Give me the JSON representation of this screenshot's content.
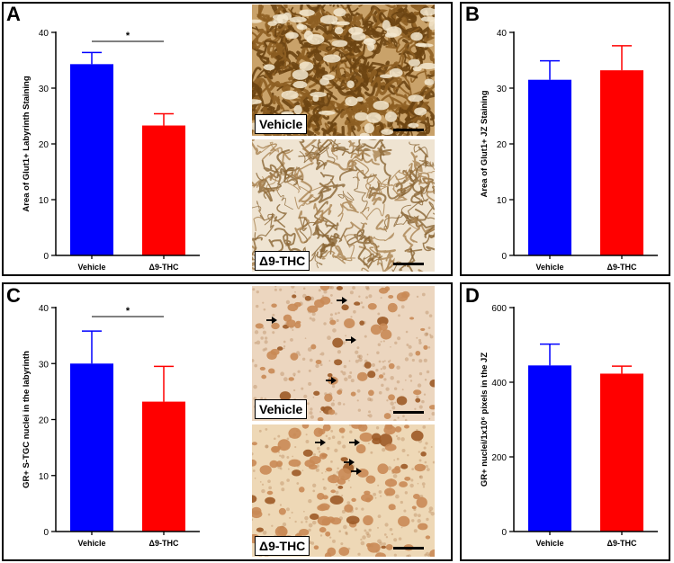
{
  "panels": {
    "A": {
      "letter": "A"
    },
    "B": {
      "letter": "B"
    },
    "C": {
      "letter": "C"
    },
    "D": {
      "letter": "D"
    }
  },
  "micrographs": {
    "A_vehicle": {
      "label": "Vehicle",
      "color": "#a9773a"
    },
    "A_thc": {
      "label": "Δ9-THC",
      "color": "#b48a55"
    },
    "C_vehicle": {
      "label": "Vehicle",
      "color": "#c98e5e"
    },
    "C_thc": {
      "label": "Δ9-THC",
      "color": "#c8894f"
    }
  },
  "chart_data": [
    {
      "id": "A",
      "type": "bar",
      "categories": [
        "Vehicle",
        "Δ9-THC"
      ],
      "values": [
        34.3,
        23.3
      ],
      "errors": [
        2.1,
        2.1
      ],
      "colors": [
        "#0000ff",
        "#ff0000"
      ],
      "ylabel": "Area of Glut1+ Labyrinth Staining",
      "ylim": [
        0,
        40
      ],
      "yticks": [
        "0",
        "10",
        "20",
        "30",
        "40"
      ],
      "significance": "*"
    },
    {
      "id": "B",
      "type": "bar",
      "categories": [
        "Vehicle",
        "Δ9-THC"
      ],
      "values": [
        31.5,
        33.2
      ],
      "errors": [
        3.4,
        4.4
      ],
      "colors": [
        "#0000ff",
        "#ff0000"
      ],
      "ylabel": "Area of Glut1+ JZ Staining",
      "ylim": [
        0,
        40
      ],
      "yticks": [
        "0",
        "10",
        "20",
        "30",
        "40"
      ],
      "significance": ""
    },
    {
      "id": "C",
      "type": "bar",
      "categories": [
        "Vehicle",
        "Δ9-THC"
      ],
      "values": [
        30.0,
        23.2
      ],
      "errors": [
        5.8,
        6.3
      ],
      "colors": [
        "#0000ff",
        "#ff0000"
      ],
      "ylabel": "GR+ S-TGC nuclei in the labyrinth",
      "ylim": [
        0,
        40
      ],
      "yticks": [
        "0",
        "10",
        "20",
        "30",
        "40"
      ],
      "significance": "*"
    },
    {
      "id": "D",
      "type": "bar",
      "categories": [
        "Vehicle",
        "Δ9-THC"
      ],
      "values": [
        445,
        423
      ],
      "errors": [
        57,
        20
      ],
      "colors": [
        "#0000ff",
        "#ff0000"
      ],
      "ylabel": "GR+ nuclei/1x10⁶ pixels in the JZ",
      "ylim": [
        0,
        600
      ],
      "yticks": [
        "0",
        "200",
        "400",
        "600"
      ],
      "significance": ""
    }
  ]
}
